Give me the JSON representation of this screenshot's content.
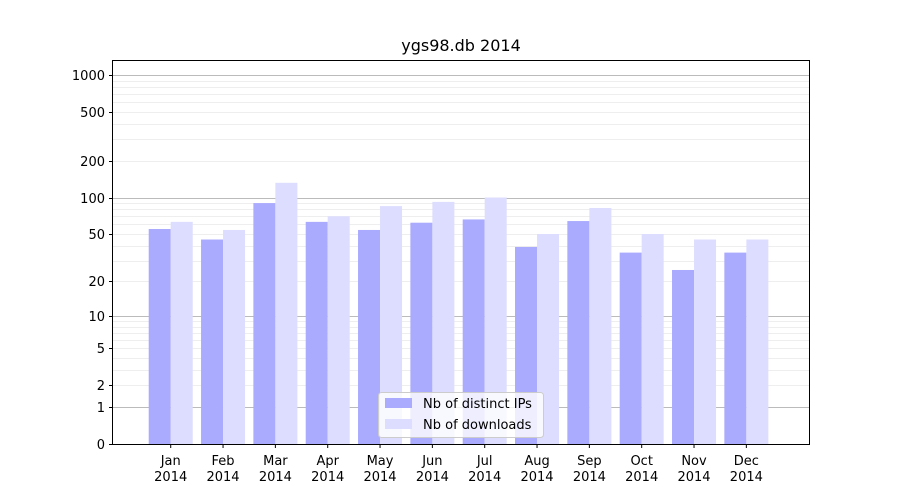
{
  "chart_data": {
    "type": "bar",
    "title": "ygs98.db 2014",
    "xlabel": "",
    "ylabel": "",
    "y_scale": "symlog",
    "ylim": [
      0,
      1300
    ],
    "yticks": [
      0,
      1,
      2,
      5,
      10,
      20,
      50,
      100,
      200,
      500,
      1000
    ],
    "ytick_labels": [
      "0",
      "1",
      "2",
      "5",
      "10",
      "20",
      "50",
      "100",
      "200",
      "500",
      "1000"
    ],
    "grid": true,
    "legend_position": "bottom-center",
    "categories": [
      [
        "Jan",
        "2014"
      ],
      [
        "Feb",
        "2014"
      ],
      [
        "Mar",
        "2014"
      ],
      [
        "Apr",
        "2014"
      ],
      [
        "May",
        "2014"
      ],
      [
        "Jun",
        "2014"
      ],
      [
        "Jul",
        "2014"
      ],
      [
        "Aug",
        "2014"
      ],
      [
        "Sep",
        "2014"
      ],
      [
        "Oct",
        "2014"
      ],
      [
        "Nov",
        "2014"
      ],
      [
        "Dec",
        "2014"
      ]
    ],
    "series": [
      {
        "name": "Nb of distinct IPs",
        "color": "#aaaaff",
        "values": [
          55,
          45,
          90,
          63,
          54,
          62,
          66,
          39,
          64,
          35,
          25,
          35
        ]
      },
      {
        "name": "Nb of downloads",
        "color": "#ddddff",
        "values": [
          63,
          54,
          132,
          70,
          85,
          92,
          100,
          50,
          82,
          50,
          45,
          45
        ]
      }
    ]
  }
}
